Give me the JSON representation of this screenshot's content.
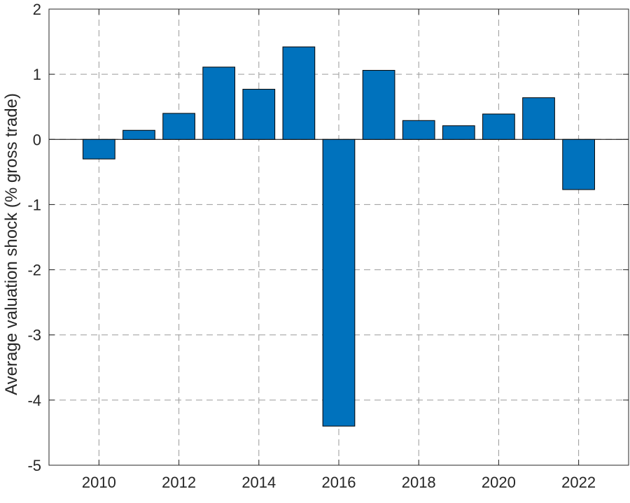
{
  "chart_data": {
    "type": "bar",
    "title": "",
    "xlabel": "",
    "ylabel": "Average valuation shock (% gross trade)",
    "x": [
      2010,
      2011,
      2012,
      2013,
      2014,
      2015,
      2016,
      2017,
      2018,
      2019,
      2020,
      2021,
      2022
    ],
    "values": [
      -0.3,
      0.14,
      0.4,
      1.11,
      0.77,
      1.42,
      -4.4,
      1.06,
      0.29,
      0.21,
      0.39,
      0.64,
      -0.77
    ],
    "xlim": [
      2008.75,
      2023.25
    ],
    "ylim": [
      -5,
      2
    ],
    "xticks": [
      2010,
      2012,
      2014,
      2016,
      2018,
      2020,
      2022
    ],
    "yticks": [
      -5,
      -4,
      -3,
      -2,
      -1,
      0,
      1,
      2
    ],
    "grid": true,
    "bar_color": "#0072BD",
    "bar_edge_color": "#000000",
    "grid_color": "#9a9a9a",
    "axis_color": "#262626"
  }
}
